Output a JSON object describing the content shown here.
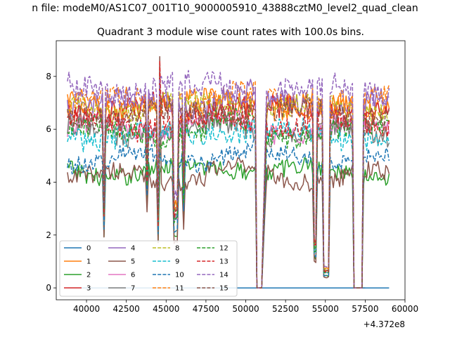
{
  "suptitle": "n file: modeM0/AS1C07_001T10_9000005910_43888cztM0_level2_quad_clean",
  "chart_data": {
    "type": "line",
    "title": "Quadrant 3 module wise count rates with 100.0s bins.",
    "xlabel": "",
    "ylabel": "",
    "x_offset_label": "+4.372e8",
    "xlim": [
      38100,
      60000
    ],
    "ylim": [
      -0.45,
      9.35
    ],
    "x_ticks": [
      40000,
      42500,
      45000,
      47500,
      50000,
      52500,
      55000,
      57500,
      60000
    ],
    "x_tick_labels": [
      "40000",
      "42500",
      "45000",
      "47500",
      "50000",
      "52500",
      "55000",
      "57500",
      "60000"
    ],
    "y_ticks": [
      0,
      2,
      4,
      6,
      8
    ],
    "y_tick_labels": [
      "0",
      "2",
      "4",
      "6",
      "8"
    ],
    "x_range": [
      38800,
      59000
    ],
    "bin": 100,
    "drops": [
      {
        "x": 41100,
        "w": 100,
        "depth": 0.55
      },
      {
        "x": 43800,
        "w": 100,
        "depth": 0.3
      },
      {
        "x": 44500,
        "w": 100,
        "depth": 0.6
      },
      {
        "x": 45500,
        "w": 300,
        "depth": 0.55
      },
      {
        "x": 46100,
        "w": 100,
        "depth": 0.4
      },
      {
        "x": 50700,
        "w": 300,
        "depth": 1.0
      },
      {
        "x": 54300,
        "w": 200,
        "depth": 0.75
      },
      {
        "x": 54900,
        "w": 400,
        "depth": 0.9
      },
      {
        "x": 56800,
        "w": 600,
        "depth": 1.0
      }
    ],
    "grey_spans": [
      {
        "x0": 50800,
        "x1": 51000
      },
      {
        "x0": 56900,
        "x1": 57500
      }
    ],
    "spike": {
      "x": 44600,
      "value": 8.85
    },
    "legend": {
      "position": "lower-left",
      "columns": 4
    },
    "series": [
      {
        "name": "0",
        "color": "#1f77b4",
        "dash": "solid",
        "flat": true,
        "level": 0.0
      },
      {
        "name": "1",
        "color": "#ff7f0e",
        "dash": "solid",
        "level": 6.9,
        "amp": 0.45
      },
      {
        "name": "2",
        "color": "#2ca02c",
        "dash": "solid",
        "level": 4.4,
        "amp": 0.35
      },
      {
        "name": "3",
        "color": "#d62728",
        "dash": "solid",
        "level": 6.7,
        "amp": 0.5
      },
      {
        "name": "4",
        "color": "#9467bd",
        "dash": "solid",
        "level": 7.0,
        "amp": 0.45
      },
      {
        "name": "5",
        "color": "#8c564b",
        "dash": "solid",
        "level": 4.2,
        "amp": 0.35
      },
      {
        "name": "6",
        "color": "#e377c2",
        "dash": "solid",
        "level": 6.0,
        "amp": 0.4
      },
      {
        "name": "7",
        "color": "#7f7f7f",
        "dash": "solid",
        "level": 5.9,
        "amp": 0.4
      },
      {
        "name": "8",
        "color": "#bcbd22",
        "dash": "dashed",
        "level": 6.8,
        "amp": 0.45
      },
      {
        "name": "9",
        "color": "#17becf",
        "dash": "dashed",
        "level": 5.8,
        "amp": 0.45
      },
      {
        "name": "10",
        "color": "#1f77b4",
        "dash": "dashed",
        "level": 4.9,
        "amp": 0.35
      },
      {
        "name": "11",
        "color": "#ff7f0e",
        "dash": "dashed",
        "level": 7.0,
        "amp": 0.45
      },
      {
        "name": "12",
        "color": "#2ca02c",
        "dash": "dashed",
        "level": 5.9,
        "amp": 0.4
      },
      {
        "name": "13",
        "color": "#d62728",
        "dash": "dashed",
        "level": 6.2,
        "amp": 0.45
      },
      {
        "name": "14",
        "color": "#9467bd",
        "dash": "dashed",
        "level": 7.5,
        "amp": 0.5
      },
      {
        "name": "15",
        "color": "#8c564b",
        "dash": "dashed",
        "level": 6.6,
        "amp": 0.45
      }
    ]
  }
}
